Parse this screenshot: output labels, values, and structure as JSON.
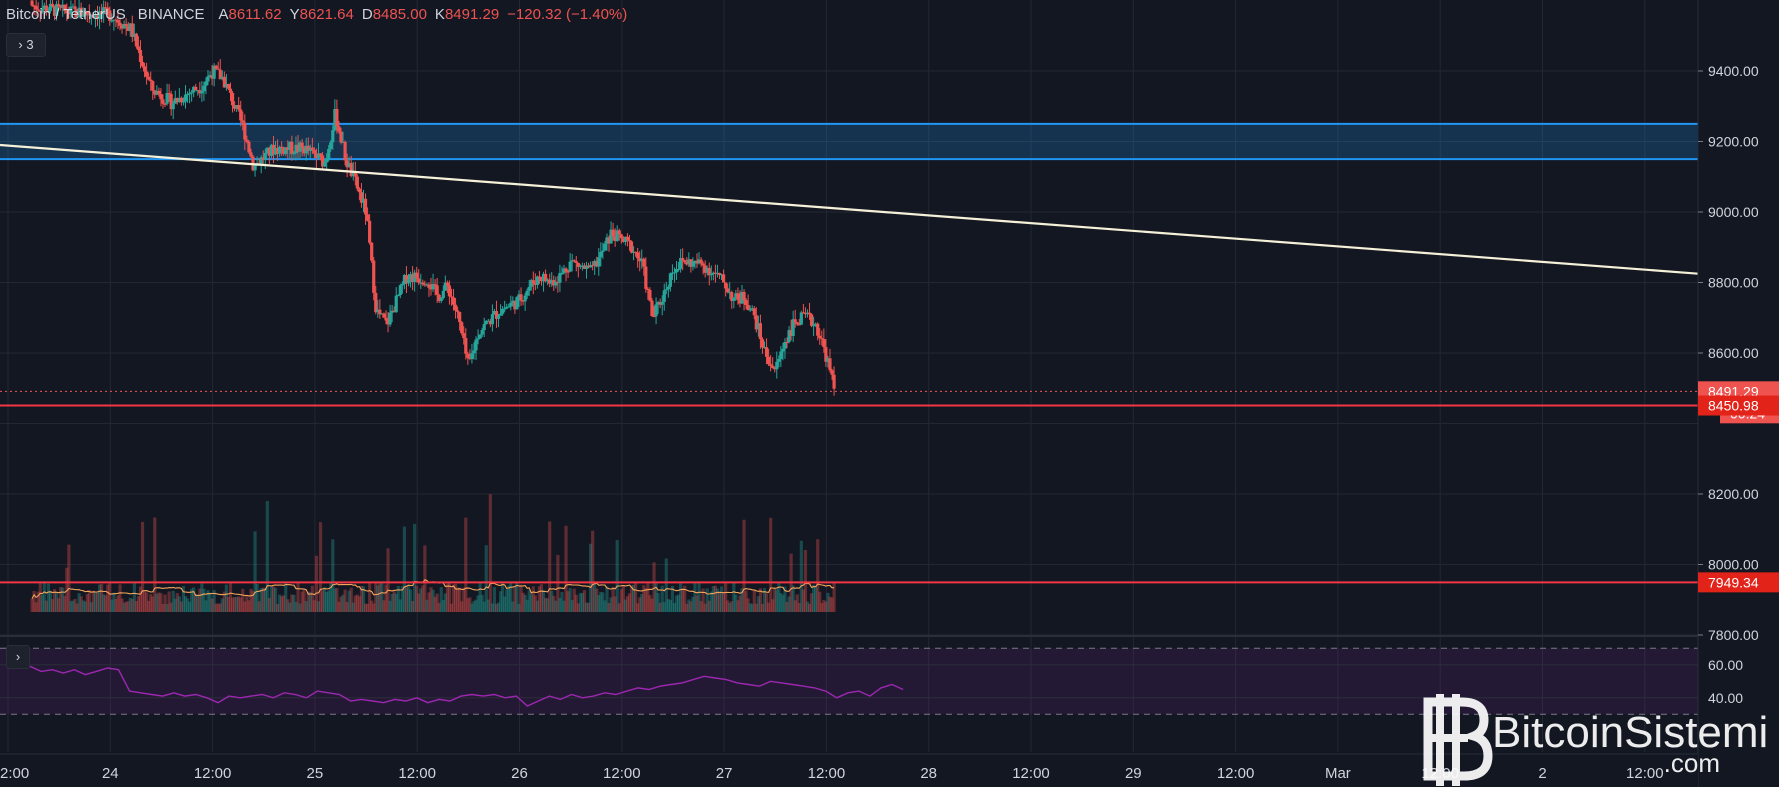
{
  "header": {
    "symbol": "Bitcoin / TetherUS",
    "exchange": "BINANCE",
    "open_label": "A",
    "open": "8611.62",
    "high_label": "Y",
    "high": "8621.64",
    "low_label": "D",
    "low": "8485.00",
    "close_label": "K",
    "close": "8491.29",
    "change": "−120.32 (−1.40%)"
  },
  "indicator_toggle": {
    "icon": "chevron-right-icon",
    "count": "3"
  },
  "rsi_toggle": {
    "icon": "chevron-right-icon"
  },
  "colors": {
    "bg": "#131722",
    "up": "#26a69a",
    "down": "#ef5350",
    "zone": "#2196f3",
    "trend": "#f5f0d8",
    "support": "#f23645",
    "rsi": "#9c27b0",
    "ma": "#f5a55a"
  },
  "chart_data": {
    "type": "candlestick",
    "price_axis": {
      "ticks": [
        "9400.00",
        "9200.00",
        "9000.00",
        "8800.00",
        "8600.00",
        "8200.00",
        "8000.00",
        "7800.00"
      ],
      "tick_values": [
        9400,
        9200,
        9000,
        8800,
        8600,
        8200,
        8000,
        7800
      ]
    },
    "time_axis": {
      "ticks": [
        "2:00",
        "24",
        "12:00",
        "25",
        "12:00",
        "26",
        "12:00",
        "27",
        "12:00",
        "28",
        "12:00",
        "29",
        "12:00",
        "Mar",
        "12:00",
        "2",
        "12:00"
      ]
    },
    "price_tags": {
      "last_price": "8491.29",
      "countdown": "00:24",
      "support_high": "8450.98",
      "support_low": "7949.34"
    },
    "levels": {
      "resistance_zone": [
        9150,
        9250
      ],
      "support_high": 8450.98,
      "support_low": 7949.34,
      "last_price": 8491.29
    },
    "trendline": {
      "from": [
        "23 22:00",
        9190
      ],
      "to": [
        "Mar 2 12:00",
        8825
      ]
    },
    "path": [
      [
        0,
        9600
      ],
      [
        5,
        9570
      ],
      [
        10,
        9560
      ],
      [
        12,
        9520
      ],
      [
        14,
        9350
      ],
      [
        16,
        9310
      ],
      [
        19,
        9360
      ],
      [
        20,
        9400
      ],
      [
        21,
        9380
      ],
      [
        23,
        9240
      ],
      [
        24,
        9130
      ],
      [
        26,
        9180
      ],
      [
        29,
        9180
      ],
      [
        31,
        9140
      ],
      [
        32,
        9280
      ],
      [
        33,
        9150
      ],
      [
        34,
        9080
      ],
      [
        35,
        9000
      ],
      [
        36,
        8720
      ],
      [
        37,
        8680
      ],
      [
        39,
        8820
      ],
      [
        41,
        8810
      ],
      [
        42,
        8760
      ],
      [
        43,
        8790
      ],
      [
        44,
        8700
      ],
      [
        45,
        8560
      ],
      [
        46,
        8660
      ],
      [
        48,
        8720
      ],
      [
        50,
        8750
      ],
      [
        51,
        8790
      ],
      [
        52,
        8820
      ],
      [
        53,
        8800
      ],
      [
        54,
        8820
      ],
      [
        55,
        8860
      ],
      [
        57,
        8830
      ],
      [
        58,
        8880
      ],
      [
        59,
        8940
      ],
      [
        60,
        8920
      ],
      [
        61,
        8900
      ],
      [
        62,
        8850
      ],
      [
        63,
        8700
      ],
      [
        64,
        8760
      ],
      [
        65,
        8840
      ],
      [
        66,
        8860
      ],
      [
        68,
        8850
      ],
      [
        70,
        8800
      ],
      [
        71,
        8750
      ],
      [
        72,
        8760
      ],
      [
        73,
        8700
      ],
      [
        74,
        8600
      ],
      [
        75,
        8550
      ],
      [
        76,
        8640
      ],
      [
        77,
        8690
      ],
      [
        78,
        8700
      ],
      [
        79,
        8680
      ],
      [
        80,
        8590
      ],
      [
        80.8,
        8491.29
      ]
    ],
    "rsi": {
      "label_ticks": [
        "60.00",
        "40.00"
      ],
      "tick_values": [
        60,
        40
      ],
      "band": [
        30,
        70
      ],
      "values": [
        61,
        58,
        59,
        56,
        57,
        55,
        57,
        54,
        56,
        58,
        57,
        44,
        43,
        42,
        41,
        43,
        41,
        42,
        40,
        37,
        41,
        40,
        41,
        42,
        40,
        43,
        42,
        40,
        44,
        43,
        42,
        38,
        39,
        38,
        37,
        39,
        38,
        40,
        37,
        39,
        38,
        41,
        42,
        41,
        42,
        40,
        41,
        35,
        38,
        41,
        39,
        42,
        40,
        41,
        43,
        42,
        44,
        46,
        45,
        47,
        48,
        49,
        51,
        53,
        52,
        51,
        49,
        48,
        47,
        50,
        49,
        48,
        47,
        46,
        44,
        40,
        43,
        44,
        41,
        46,
        48,
        45
      ]
    }
  },
  "watermark": {
    "brand": "BitcoinSistemi",
    "suffix": ".com",
    "logo": "bitcoin-logo-icon"
  }
}
